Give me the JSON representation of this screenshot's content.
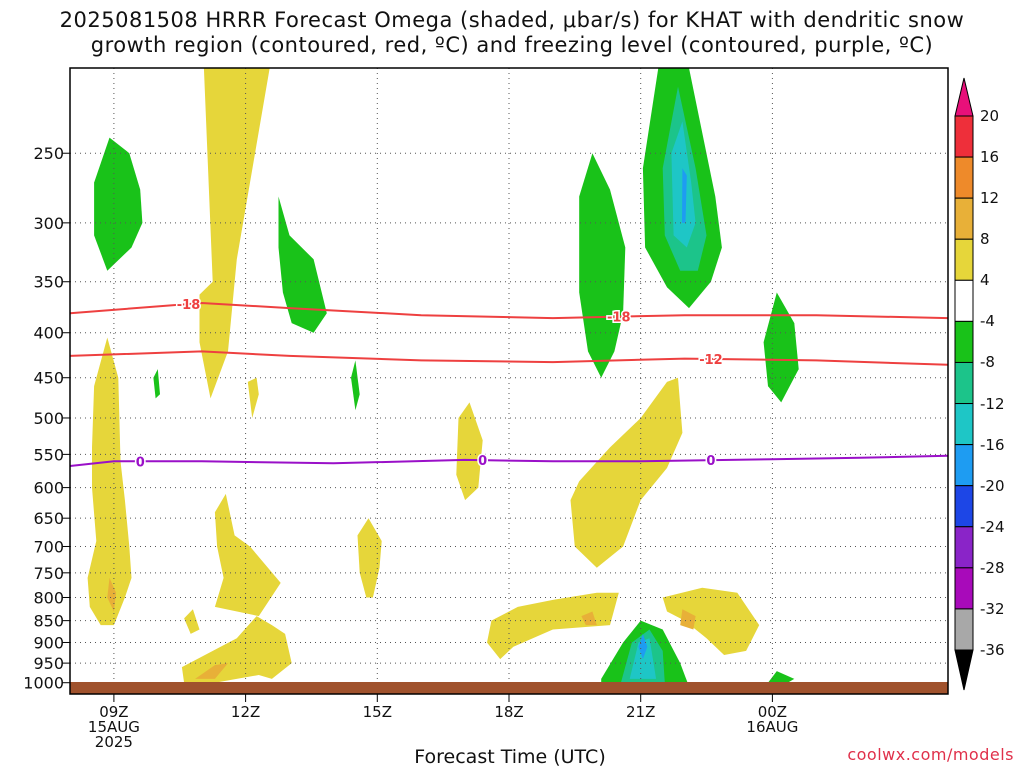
{
  "title": {
    "line1": "2025081508 HRRR Forecast Omega (shaded, μbar/s) for KHAT with dendritic snow",
    "line2": "growth region (contoured, red, ºC) and freezing level (contoured, purple, ºC)"
  },
  "footer": {
    "xlabel": "Forecast Time (UTC)",
    "credit": "coolwx.com/models"
  },
  "chart_data": {
    "type": "heatmap",
    "title": "2025081508 HRRR Forecast Omega (shaded, μbar/s) for KHAT with dendritic snow growth region (contoured, red, ºC) and freezing level (contoured, purple, ºC)",
    "xlabel": "Forecast Time (UTC)",
    "ylabel": "",
    "y_scale": "log-pressure (inverted)",
    "y_range_hPa": [
      1030,
      200
    ],
    "x_range_hours_from_08Z": [
      0,
      20
    ],
    "y_ticks": [
      250,
      300,
      350,
      400,
      450,
      500,
      550,
      600,
      650,
      700,
      750,
      800,
      850,
      900,
      950,
      1000
    ],
    "x_ticks": [
      {
        "hour": 1,
        "label": [
          "09Z",
          "15AUG",
          "2025"
        ]
      },
      {
        "hour": 4,
        "label": [
          "12Z"
        ]
      },
      {
        "hour": 7,
        "label": [
          "15Z"
        ]
      },
      {
        "hour": 10,
        "label": [
          "18Z"
        ]
      },
      {
        "hour": 13,
        "label": [
          "21Z"
        ]
      },
      {
        "hour": 16,
        "label": [
          "00Z",
          "16AUG"
        ]
      }
    ],
    "grid": true,
    "colorbar": {
      "position": "right",
      "units": "μbar/s",
      "labels": [
        "20",
        "16",
        "12",
        "8",
        "4",
        "-4",
        "-8",
        "-12",
        "-16",
        "-20",
        "-24",
        "-28",
        "-32",
        "-36"
      ],
      "colors": [
        "#ee2f3a",
        "#ee8a2a",
        "#e8b038",
        "#e6d63a",
        "#ffffff",
        "#19c219",
        "#1cc48a",
        "#1ec6c6",
        "#1e9cf2",
        "#1d46e6",
        "#8a24c8",
        "#a80aba",
        "#a8a8a8"
      ],
      "top_arrow_color": "#e8107a",
      "bottom_arrow_color": "#000000"
    },
    "contours": [
      {
        "name": "dendritic growth -18 ºC",
        "label": "-18",
        "color": "#ee4040",
        "points": [
          [
            0,
            380
          ],
          [
            3,
            370
          ],
          [
            5,
            375
          ],
          [
            8,
            382
          ],
          [
            11,
            385
          ],
          [
            14,
            382
          ],
          [
            17,
            382
          ],
          [
            20,
            385
          ]
        ]
      },
      {
        "name": "dendritic growth -12 ºC",
        "label": "-12",
        "color": "#ee4040",
        "points": [
          [
            0,
            425
          ],
          [
            3,
            420
          ],
          [
            5,
            425
          ],
          [
            8,
            430
          ],
          [
            11,
            432
          ],
          [
            14,
            428
          ],
          [
            17,
            430
          ],
          [
            20,
            435
          ]
        ]
      },
      {
        "name": "freezing level 0 ºC",
        "label": "0",
        "color": "#9a10c8",
        "points": [
          [
            0,
            567
          ],
          [
            1,
            560
          ],
          [
            3,
            560
          ],
          [
            6,
            563
          ],
          [
            9,
            558
          ],
          [
            11,
            560
          ],
          [
            13,
            560
          ],
          [
            16,
            557
          ],
          [
            18,
            555
          ],
          [
            20,
            552
          ]
        ]
      }
    ],
    "regions": [
      {
        "value": 4,
        "color": "#e6d63a",
        "points": [
          [
            3.05,
            200
          ],
          [
            4.55,
            200
          ],
          [
            3.8,
            330
          ],
          [
            3.6,
            420
          ],
          [
            3.2,
            475
          ],
          [
            2.95,
            410
          ],
          [
            2.95,
            362
          ],
          [
            3.25,
            350
          ]
        ]
      },
      {
        "value": 4,
        "color": "#e6d63a",
        "points": [
          [
            0.55,
            460
          ],
          [
            0.85,
            405
          ],
          [
            1.1,
            450
          ],
          [
            1.15,
            560
          ],
          [
            1.25,
            620
          ],
          [
            1.35,
            700
          ],
          [
            1.4,
            760
          ],
          [
            1.25,
            800
          ],
          [
            1.0,
            860
          ],
          [
            0.7,
            860
          ],
          [
            0.45,
            820
          ],
          [
            0.4,
            760
          ],
          [
            0.6,
            690
          ],
          [
            0.5,
            600
          ],
          [
            0.5,
            540
          ]
        ]
      },
      {
        "value": 8,
        "color": "#e8b038",
        "points": [
          [
            0.9,
            760
          ],
          [
            1.05,
            790
          ],
          [
            1.0,
            830
          ],
          [
            0.85,
            800
          ]
        ]
      },
      {
        "value": 4,
        "color": "#e6d63a",
        "points": [
          [
            3.3,
            640
          ],
          [
            3.55,
            610
          ],
          [
            3.75,
            680
          ],
          [
            4.1,
            700
          ],
          [
            4.8,
            770
          ],
          [
            4.3,
            840
          ],
          [
            3.3,
            820
          ],
          [
            3.5,
            760
          ],
          [
            3.35,
            700
          ]
        ]
      },
      {
        "value": 4,
        "color": "#e6d63a",
        "points": [
          [
            2.6,
            845
          ],
          [
            2.8,
            825
          ],
          [
            2.95,
            870
          ],
          [
            2.75,
            880
          ]
        ]
      },
      {
        "value": 4,
        "color": "#e6d63a",
        "points": [
          [
            2.55,
            960
          ],
          [
            3.8,
            890
          ],
          [
            4.25,
            840
          ],
          [
            4.6,
            860
          ],
          [
            4.9,
            880
          ],
          [
            5.05,
            950
          ],
          [
            4.6,
            990
          ],
          [
            4.3,
            980
          ],
          [
            3.3,
            1000
          ],
          [
            2.6,
            1000
          ]
        ]
      },
      {
        "value": 8,
        "color": "#e8b038",
        "points": [
          [
            2.85,
            990
          ],
          [
            3.3,
            955
          ],
          [
            3.6,
            950
          ],
          [
            3.3,
            990
          ]
        ]
      },
      {
        "value": 4,
        "color": "#e6d63a",
        "points": [
          [
            4.05,
            455
          ],
          [
            4.25,
            450
          ],
          [
            4.3,
            470
          ],
          [
            4.15,
            500
          ]
        ]
      },
      {
        "value": 4,
        "color": "#e6d63a",
        "points": [
          [
            6.55,
            680
          ],
          [
            6.8,
            650
          ],
          [
            7.1,
            690
          ],
          [
            7.05,
            740
          ],
          [
            6.9,
            800
          ],
          [
            6.75,
            800
          ],
          [
            6.6,
            750
          ]
        ]
      },
      {
        "value": 4,
        "color": "#e6d63a",
        "points": [
          [
            8.85,
            500
          ],
          [
            9.1,
            480
          ],
          [
            9.4,
            530
          ],
          [
            9.3,
            600
          ],
          [
            9.0,
            620
          ],
          [
            8.8,
            580
          ]
        ]
      },
      {
        "value": 4,
        "color": "#e6d63a",
        "points": [
          [
            11.6,
            590
          ],
          [
            12.3,
            540
          ],
          [
            13.0,
            500
          ],
          [
            13.6,
            455
          ],
          [
            13.85,
            450
          ],
          [
            13.95,
            520
          ],
          [
            13.6,
            570
          ],
          [
            13.0,
            620
          ],
          [
            12.6,
            700
          ],
          [
            12.0,
            740
          ],
          [
            11.5,
            700
          ],
          [
            11.4,
            620
          ]
        ]
      },
      {
        "value": 4,
        "color": "#e6d63a",
        "points": [
          [
            9.6,
            850
          ],
          [
            10.2,
            820
          ],
          [
            11.0,
            805
          ],
          [
            12.0,
            790
          ],
          [
            12.5,
            790
          ],
          [
            12.3,
            860
          ],
          [
            11.0,
            870
          ],
          [
            10.1,
            910
          ],
          [
            9.8,
            940
          ],
          [
            9.5,
            900
          ]
        ]
      },
      {
        "value": 8,
        "color": "#e8b038",
        "points": [
          [
            11.65,
            840
          ],
          [
            11.9,
            830
          ],
          [
            12.0,
            860
          ],
          [
            11.75,
            860
          ]
        ]
      },
      {
        "value": 4,
        "color": "#e6d63a",
        "points": [
          [
            13.5,
            800
          ],
          [
            14.4,
            780
          ],
          [
            15.2,
            790
          ],
          [
            15.7,
            860
          ],
          [
            15.4,
            920
          ],
          [
            14.9,
            930
          ],
          [
            14.5,
            890
          ],
          [
            14.0,
            850
          ],
          [
            13.6,
            830
          ]
        ]
      },
      {
        "value": 8,
        "color": "#e8b038",
        "points": [
          [
            13.95,
            825
          ],
          [
            14.25,
            840
          ],
          [
            14.2,
            870
          ],
          [
            13.9,
            860
          ]
        ]
      },
      {
        "value": -4,
        "color": "#19c219",
        "points": [
          [
            0.55,
            270
          ],
          [
            0.9,
            240
          ],
          [
            1.35,
            250
          ],
          [
            1.6,
            275
          ],
          [
            1.65,
            300
          ],
          [
            1.4,
            320
          ],
          [
            0.85,
            340
          ],
          [
            0.55,
            310
          ]
        ]
      },
      {
        "value": -4,
        "color": "#19c219",
        "points": [
          [
            1.9,
            450
          ],
          [
            2.0,
            440
          ],
          [
            2.05,
            470
          ],
          [
            1.95,
            475
          ]
        ]
      },
      {
        "value": -4,
        "color": "#19c219",
        "points": [
          [
            4.75,
            280
          ],
          [
            5.0,
            310
          ],
          [
            5.55,
            330
          ],
          [
            5.85,
            380
          ],
          [
            5.55,
            400
          ],
          [
            5.05,
            390
          ],
          [
            4.85,
            360
          ],
          [
            4.75,
            320
          ]
        ]
      },
      {
        "value": -4,
        "color": "#19c219",
        "points": [
          [
            6.4,
            450
          ],
          [
            6.5,
            430
          ],
          [
            6.6,
            470
          ],
          [
            6.5,
            490
          ]
        ]
      },
      {
        "value": -4,
        "color": "#19c219",
        "points": [
          [
            11.6,
            280
          ],
          [
            11.9,
            250
          ],
          [
            12.3,
            275
          ],
          [
            12.65,
            320
          ],
          [
            12.6,
            380
          ],
          [
            12.4,
            420
          ],
          [
            12.1,
            450
          ],
          [
            11.8,
            420
          ],
          [
            11.6,
            360
          ]
        ]
      },
      {
        "value": -4,
        "color": "#19c219",
        "points": [
          [
            13.05,
            260
          ],
          [
            13.4,
            200
          ],
          [
            14.1,
            200
          ],
          [
            14.7,
            280
          ],
          [
            14.85,
            320
          ],
          [
            14.6,
            350
          ],
          [
            14.1,
            375
          ],
          [
            13.6,
            355
          ],
          [
            13.1,
            320
          ]
        ]
      },
      {
        "value": -8,
        "color": "#1cc48a",
        "points": [
          [
            13.5,
            260
          ],
          [
            13.85,
            210
          ],
          [
            14.25,
            260
          ],
          [
            14.5,
            310
          ],
          [
            14.3,
            340
          ],
          [
            13.9,
            340
          ],
          [
            13.55,
            310
          ]
        ]
      },
      {
        "value": -12,
        "color": "#1ec6c6",
        "points": [
          [
            13.7,
            250
          ],
          [
            13.95,
            230
          ],
          [
            14.15,
            270
          ],
          [
            14.25,
            300
          ],
          [
            14.05,
            320
          ],
          [
            13.75,
            310
          ]
        ]
      },
      {
        "value": -16,
        "color": "#1e9cf2",
        "points": [
          [
            13.95,
            260
          ],
          [
            14.05,
            265
          ],
          [
            14.02,
            300
          ],
          [
            13.94,
            300
          ]
        ]
      },
      {
        "value": -4,
        "color": "#19c219",
        "points": [
          [
            15.8,
            410
          ],
          [
            16.1,
            360
          ],
          [
            16.5,
            390
          ],
          [
            16.6,
            440
          ],
          [
            16.2,
            480
          ],
          [
            15.9,
            460
          ]
        ]
      },
      {
        "value": -4,
        "color": "#19c219",
        "points": [
          [
            12.1,
            990
          ],
          [
            12.6,
            900
          ],
          [
            13.0,
            850
          ],
          [
            13.5,
            870
          ],
          [
            13.9,
            950
          ],
          [
            14.1,
            1010
          ],
          [
            12.1,
            1010
          ]
        ]
      },
      {
        "value": -8,
        "color": "#1cc48a",
        "points": [
          [
            12.55,
            1000
          ],
          [
            12.8,
            900
          ],
          [
            13.2,
            870
          ],
          [
            13.5,
            920
          ],
          [
            13.55,
            1000
          ]
        ]
      },
      {
        "value": -12,
        "color": "#1ec6c6",
        "points": [
          [
            12.75,
            990
          ],
          [
            12.95,
            900
          ],
          [
            13.2,
            890
          ],
          [
            13.35,
            990
          ]
        ]
      },
      {
        "value": -16,
        "color": "#1e9cf2",
        "points": [
          [
            12.95,
            910
          ],
          [
            13.05,
            880
          ],
          [
            13.15,
            910
          ],
          [
            13.05,
            940
          ]
        ]
      },
      {
        "value": -4,
        "color": "#19c219",
        "points": [
          [
            15.9,
            1000
          ],
          [
            16.1,
            970
          ],
          [
            16.5,
            990
          ],
          [
            16.2,
            1010
          ]
        ]
      }
    ]
  }
}
